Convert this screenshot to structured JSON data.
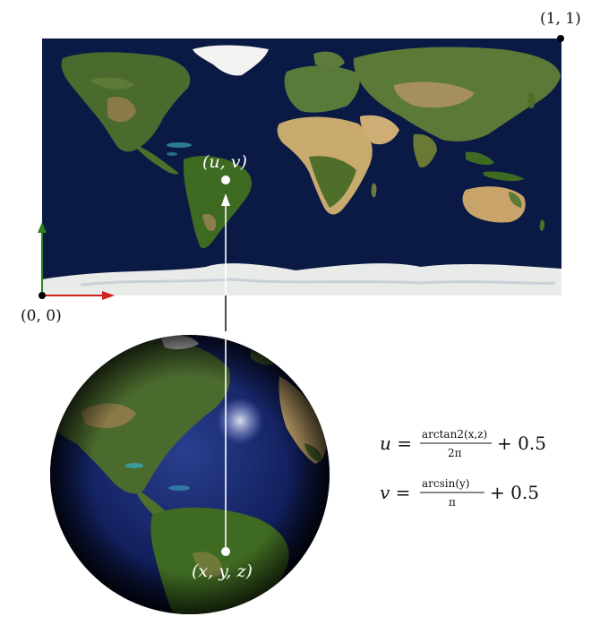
{
  "labels": {
    "top_right": "(1, 1)",
    "bottom_left": "(0, 0)",
    "uv": "(u, v)",
    "xyz": "(x, y, z)"
  },
  "equations": {
    "u_lhs": "u =",
    "u_num": "arctan2(x,z)",
    "u_den": "2π",
    "u_rhs": "+ 0.5",
    "v_lhs": "v =",
    "v_num": "arcsin(y)",
    "v_den": "π",
    "v_rhs": "+ 0.5"
  },
  "colors": {
    "ocean": "#0b1a45",
    "land_green": "#4a6a2c",
    "desert": "#c8a96e",
    "ice": "#f2f2f0",
    "axis_x": "#d42020",
    "axis_y": "#2e7d1e",
    "arrow": "#ffffff"
  }
}
